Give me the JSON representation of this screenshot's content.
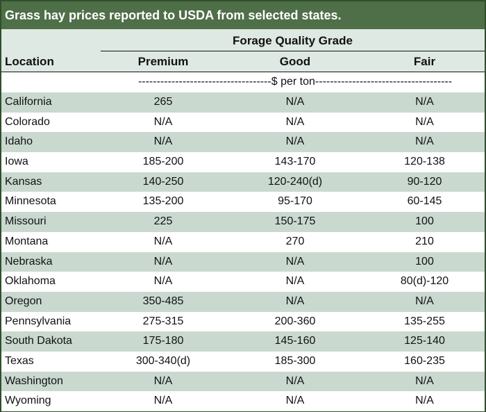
{
  "title": "Grass hay prices reported to USDA from selected states.",
  "header": {
    "location": "Location",
    "group": "Forage Quality Grade",
    "premium": "Premium",
    "good": "Good",
    "fair": "Fair"
  },
  "unit_label": "------------------------------------$ per ton-------------------------------------",
  "colors": {
    "title_bg": "#4f6f48",
    "header_bg": "#dfe9e3",
    "stripe": "#c9d9d0"
  },
  "rows": [
    {
      "location": "California",
      "premium": "265",
      "good": "N/A",
      "fair": "N/A"
    },
    {
      "location": "Colorado",
      "premium": "N/A",
      "good": "N/A",
      "fair": "N/A"
    },
    {
      "location": "Idaho",
      "premium": "N/A",
      "good": "N/A",
      "fair": "N/A"
    },
    {
      "location": "Iowa",
      "premium": "185-200",
      "good": "143-170",
      "fair": "120-138"
    },
    {
      "location": "Kansas",
      "premium": "140-250",
      "good": "120-240(d)",
      "fair": "90-120"
    },
    {
      "location": "Minnesota",
      "premium": "135-200",
      "good": "95-170",
      "fair": "60-145"
    },
    {
      "location": "Missouri",
      "premium": "225",
      "good": "150-175",
      "fair": "100"
    },
    {
      "location": "Montana",
      "premium": "N/A",
      "good": "270",
      "fair": "210"
    },
    {
      "location": "Nebraska",
      "premium": "N/A",
      "good": "N/A",
      "fair": "100"
    },
    {
      "location": "Oklahoma",
      "premium": "N/A",
      "good": "N/A",
      "fair": "80(d)-120"
    },
    {
      "location": "Oregon",
      "premium": "350-485",
      "good": "N/A",
      "fair": "N/A"
    },
    {
      "location": "Pennsylvania",
      "premium": "275-315",
      "good": "200-360",
      "fair": "135-255"
    },
    {
      "location": "South Dakota",
      "premium": "175-180",
      "good": "145-160",
      "fair": "125-140"
    },
    {
      "location": "Texas",
      "premium": "300-340(d)",
      "good": "185-300",
      "fair": "160-235"
    },
    {
      "location": "Washington",
      "premium": "N/A",
      "good": "N/A",
      "fair": "N/A"
    },
    {
      "location": "Wyoming",
      "premium": "N/A",
      "good": "N/A",
      "fair": "N/A"
    }
  ]
}
